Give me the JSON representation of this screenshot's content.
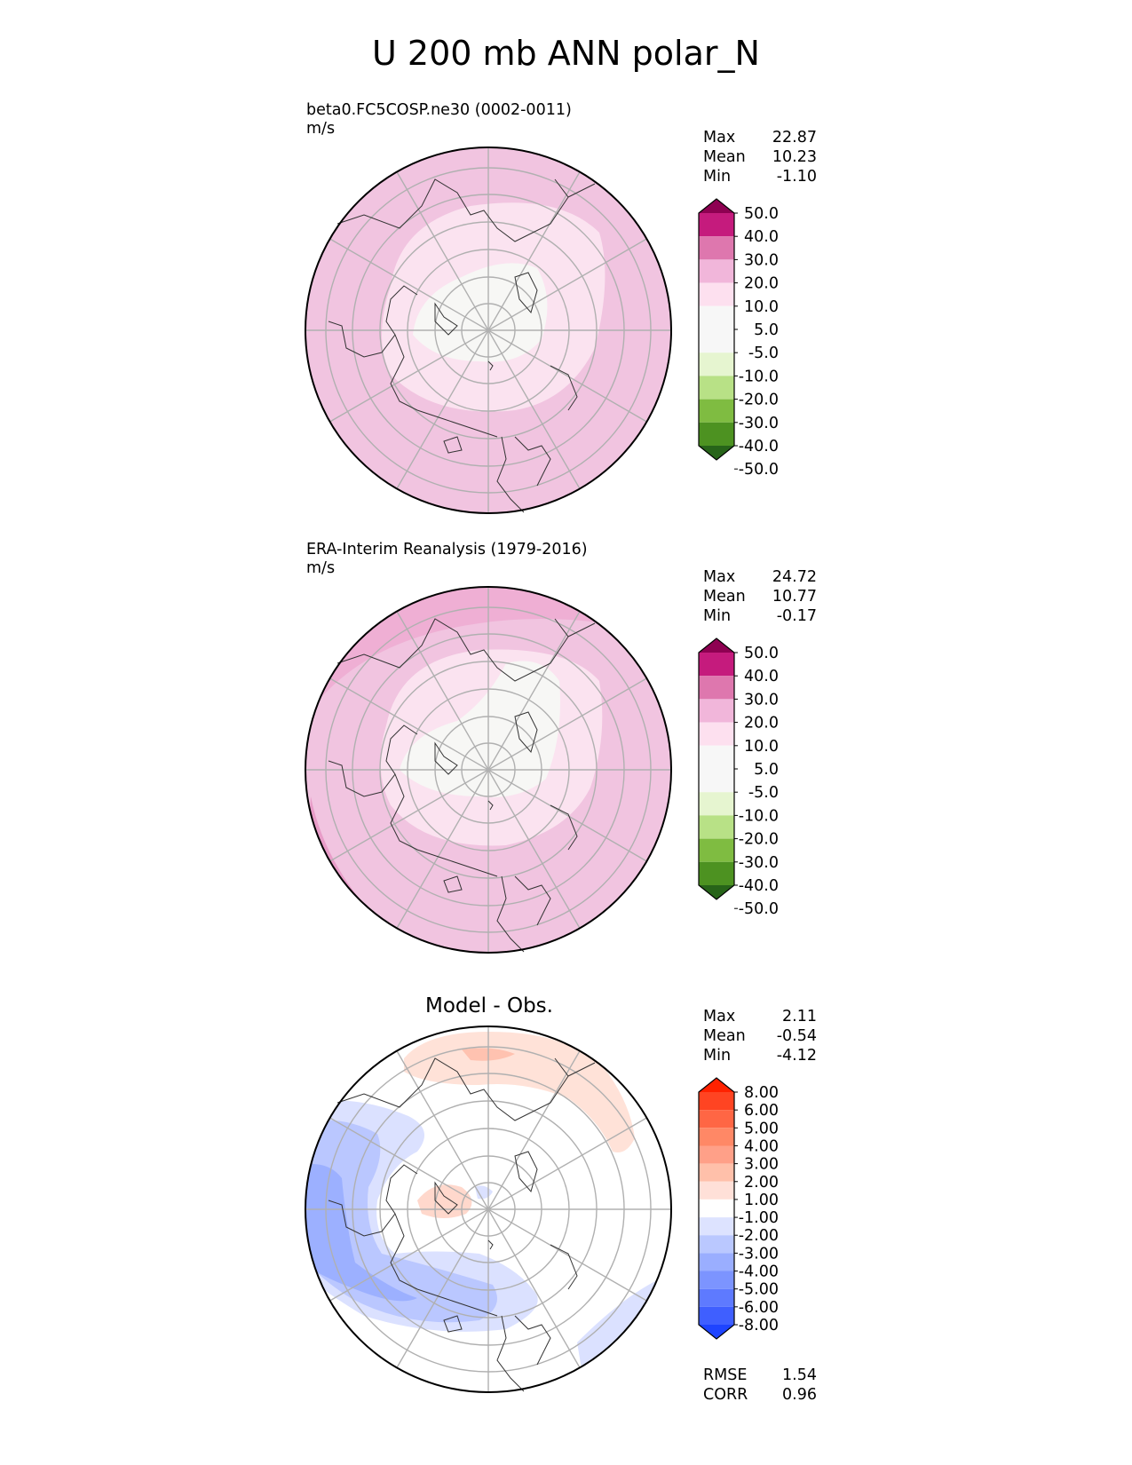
{
  "title": "U 200 mb ANN polar_N",
  "panels": [
    {
      "id": "test",
      "caption": "beta0.FC5COSP.ne30 (0002-0011)",
      "units": "m/s",
      "center_title": "",
      "stats": [
        {
          "label": "Max",
          "value": "22.87"
        },
        {
          "label": "Mean",
          "value": "10.23"
        },
        {
          "label": "Min",
          "value": "-1.10"
        }
      ],
      "colorbar": {
        "levels": [
          "50.0",
          "40.0",
          "30.0",
          "20.0",
          "10.0",
          "5.0",
          "-5.0",
          "-10.0",
          "-20.0",
          "-30.0",
          "-40.0",
          "-50.0"
        ],
        "colors": [
          "#8e0152",
          "#c51b7d",
          "#de77ae",
          "#f1b6da",
          "#fde0ef",
          "#f7f7f7",
          "#f7f7f7",
          "#e6f5d0",
          "#b8e186",
          "#7fbc41",
          "#4d9221",
          "#276419"
        ]
      }
    },
    {
      "id": "reference",
      "caption": "ERA-Interim Reanalysis (1979-2016)",
      "units": "m/s",
      "center_title": "",
      "stats": [
        {
          "label": "Max",
          "value": "24.72"
        },
        {
          "label": "Mean",
          "value": "10.77"
        },
        {
          "label": "Min",
          "value": "-0.17"
        }
      ],
      "colorbar": {
        "levels": [
          "50.0",
          "40.0",
          "30.0",
          "20.0",
          "10.0",
          "5.0",
          "-5.0",
          "-10.0",
          "-20.0",
          "-30.0",
          "-40.0",
          "-50.0"
        ],
        "colors": [
          "#8e0152",
          "#c51b7d",
          "#de77ae",
          "#f1b6da",
          "#fde0ef",
          "#f7f7f7",
          "#f7f7f7",
          "#e6f5d0",
          "#b8e186",
          "#7fbc41",
          "#4d9221",
          "#276419"
        ]
      }
    },
    {
      "id": "diff",
      "caption": "",
      "units": "",
      "center_title": "Model - Obs.",
      "stats": [
        {
          "label": "Max",
          "value": "2.11"
        },
        {
          "label": "Mean",
          "value": "-0.54"
        },
        {
          "label": "Min",
          "value": "-4.12"
        }
      ],
      "bottom_stats": [
        {
          "label": "RMSE",
          "value": "1.54"
        },
        {
          "label": "CORR",
          "value": "0.96"
        }
      ],
      "colorbar": {
        "levels": [
          "8.00",
          "6.00",
          "5.00",
          "4.00",
          "3.00",
          "2.00",
          "1.00",
          "-1.00",
          "-2.00",
          "-3.00",
          "-4.00",
          "-5.00",
          "-6.00",
          "-8.00"
        ],
        "colors": [
          "#ff2200",
          "#ff4422",
          "#ff6644",
          "#ff8866",
          "#ffa088",
          "#ffc0aa",
          "#ffe0d8",
          "#ffffff",
          "#dde3ff",
          "#bac8ff",
          "#9aaeff",
          "#7c94ff",
          "#5e7aff",
          "#3f5fff",
          "#1e44ff"
        ]
      }
    }
  ]
}
